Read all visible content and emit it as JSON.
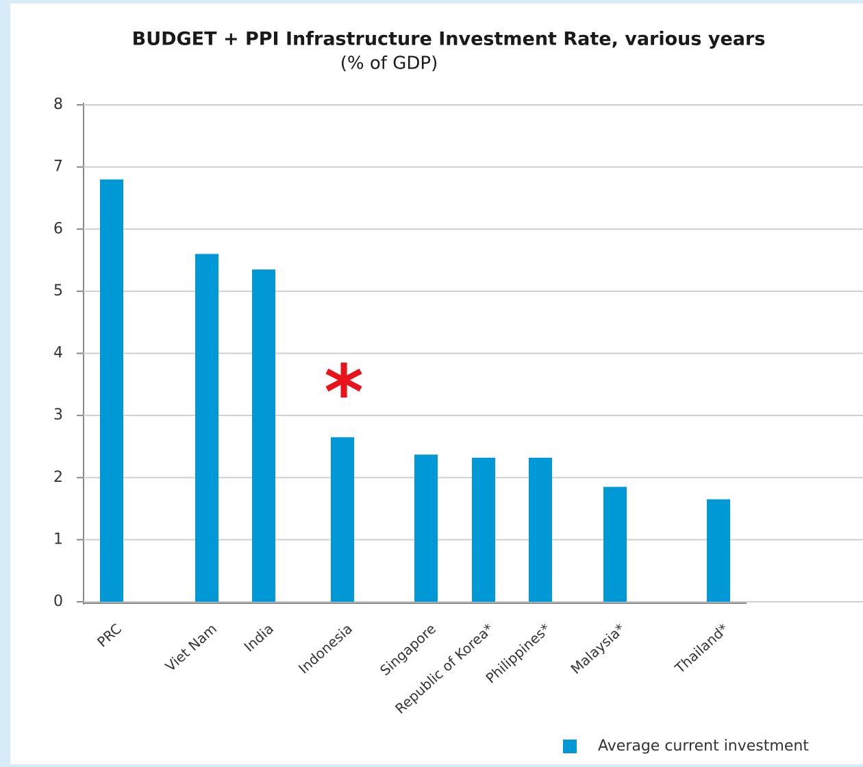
{
  "chart_data": {
    "type": "bar",
    "title": "BUDGET + PPI Infrastructure Investment Rate, various years",
    "subtitle": "(% of GDP)",
    "annotation": "*",
    "categories": [
      "PRC",
      "Viet Nam",
      "India",
      "Indonesia",
      "Singapore",
      "Republic of Korea*",
      "Philippines*",
      "Malaysia*",
      "Thailand*"
    ],
    "series": [
      {
        "name": "Average current investment",
        "color": "#0099d6",
        "values": [
          6.8,
          5.6,
          5.35,
          2.65,
          2.37,
          2.32,
          2.32,
          1.85,
          1.65
        ]
      }
    ],
    "ylim": [
      0,
      8
    ],
    "yticks": [
      0,
      1,
      2,
      3,
      4,
      5,
      6,
      7,
      8
    ],
    "grid": true,
    "legend": "bottom-right"
  }
}
